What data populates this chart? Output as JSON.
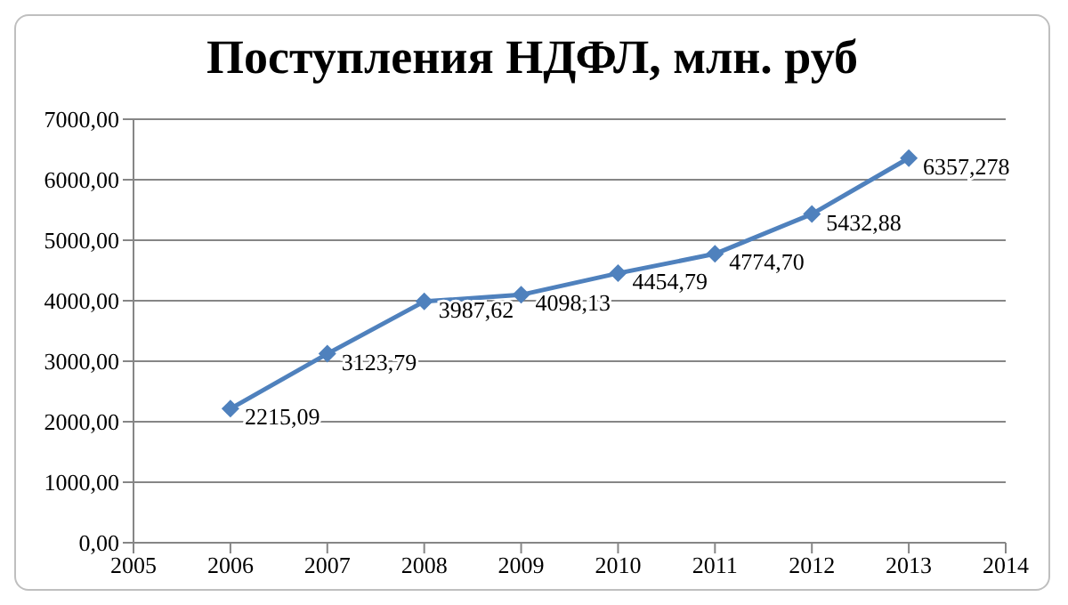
{
  "chart_data": {
    "type": "line",
    "title": "Поступления НДФЛ, млн. руб",
    "x": [
      2006,
      2007,
      2008,
      2009,
      2010,
      2011,
      2012,
      2013
    ],
    "series": [
      {
        "color": "#4f81bd",
        "values": [
          2215.09,
          3123.79,
          3987.62,
          4098.13,
          4454.79,
          4774.7,
          5432.88,
          6357.278
        ],
        "value_labels": [
          "2215,09",
          "3123,79",
          "3987,62",
          "4098,13",
          "4454,79",
          "4774,70",
          "5432,88",
          "6357,278"
        ]
      }
    ],
    "xlim": [
      2005,
      2014
    ],
    "xticks": [
      2005,
      2006,
      2007,
      2008,
      2009,
      2010,
      2011,
      2012,
      2013,
      2014
    ],
    "ylim": [
      0,
      7000
    ],
    "yticks": [
      {
        "value": 0,
        "label": "0,00"
      },
      {
        "value": 1000,
        "label": "1000,00"
      },
      {
        "value": 2000,
        "label": "2000,00"
      },
      {
        "value": 3000,
        "label": "3000,00"
      },
      {
        "value": 4000,
        "label": "4000,00"
      },
      {
        "value": 5000,
        "label": "5000,00"
      },
      {
        "value": 6000,
        "label": "6000,00"
      },
      {
        "value": 7000,
        "label": "7000,00"
      }
    ],
    "grid": "y",
    "marker": "diamond",
    "line_style": "solid"
  }
}
